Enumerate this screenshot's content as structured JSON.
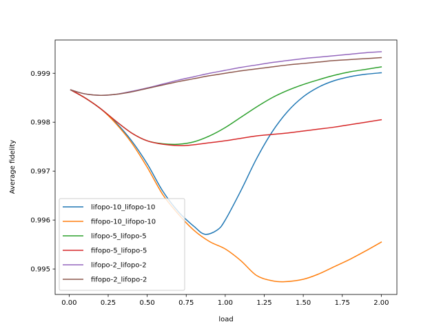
{
  "chart_data": {
    "type": "line",
    "title": "",
    "xlabel": "load",
    "ylabel": "Average fidelity",
    "xlim": [
      -0.09,
      2.1
    ],
    "ylim": [
      0.99448,
      0.99968
    ],
    "xticks": [
      0.0,
      0.25,
      0.5,
      0.75,
      1.0,
      1.25,
      1.5,
      1.75,
      2.0
    ],
    "xtick_labels": [
      "0.00",
      "0.25",
      "0.50",
      "0.75",
      "1.00",
      "1.25",
      "1.50",
      "1.75",
      "2.00"
    ],
    "yticks": [
      0.995,
      0.996,
      0.997,
      0.998,
      0.999
    ],
    "ytick_labels": [
      "0.995",
      "0.996",
      "0.997",
      "0.998",
      "0.999"
    ],
    "grid": false,
    "legend_position": "lower-left",
    "series": [
      {
        "name": "lifopo-10_lifopo-10",
        "color": "#1f77b4",
        "x": [
          0.01,
          0.1,
          0.2,
          0.3,
          0.4,
          0.5,
          0.6,
          0.7,
          0.8,
          0.87,
          0.95,
          1.0,
          1.1,
          1.2,
          1.3,
          1.4,
          1.5,
          1.6,
          1.7,
          1.8,
          1.9,
          2.0
        ],
        "y": [
          0.99866,
          0.9985,
          0.99828,
          0.99799,
          0.99762,
          0.99715,
          0.99659,
          0.99617,
          0.99587,
          0.99571,
          0.9958,
          0.996,
          0.9966,
          0.99725,
          0.9978,
          0.99822,
          0.99852,
          0.99872,
          0.99885,
          0.99893,
          0.99898,
          0.99901
        ]
      },
      {
        "name": "fifopo-10_lifopo-10",
        "color": "#ff7f0e",
        "x": [
          0.01,
          0.1,
          0.2,
          0.3,
          0.4,
          0.5,
          0.6,
          0.7,
          0.8,
          0.9,
          1.0,
          1.1,
          1.2,
          1.3,
          1.38,
          1.5,
          1.6,
          1.7,
          1.8,
          1.9,
          2.0
        ],
        "y": [
          0.99866,
          0.9985,
          0.99828,
          0.99797,
          0.99758,
          0.99708,
          0.99652,
          0.99612,
          0.99579,
          0.99556,
          0.99541,
          0.99517,
          0.99487,
          0.99476,
          0.99474,
          0.99479,
          0.9949,
          0.99505,
          0.9952,
          0.99537,
          0.99555
        ]
      },
      {
        "name": "lifopo-5_lifopo-5",
        "color": "#2ca02c",
        "x": [
          0.01,
          0.1,
          0.2,
          0.3,
          0.4,
          0.5,
          0.6,
          0.7,
          0.8,
          0.9,
          1.0,
          1.1,
          1.2,
          1.3,
          1.4,
          1.5,
          1.6,
          1.7,
          1.8,
          1.9,
          2.0
        ],
        "y": [
          0.99866,
          0.9985,
          0.99828,
          0.99802,
          0.99778,
          0.99762,
          0.99756,
          0.99755,
          0.9976,
          0.99772,
          0.99789,
          0.9981,
          0.99831,
          0.9985,
          0.99865,
          0.99877,
          0.99887,
          0.99896,
          0.99903,
          0.99908,
          0.99913
        ]
      },
      {
        "name": "fifopo-5_lifopo-5",
        "color": "#d62728",
        "x": [
          0.01,
          0.1,
          0.2,
          0.3,
          0.4,
          0.5,
          0.6,
          0.72,
          0.8,
          0.9,
          1.0,
          1.1,
          1.2,
          1.3,
          1.4,
          1.5,
          1.6,
          1.7,
          1.8,
          1.9,
          2.0
        ],
        "y": [
          0.99866,
          0.9985,
          0.99828,
          0.99802,
          0.99778,
          0.99762,
          0.99755,
          0.99752,
          0.99754,
          0.99758,
          0.99762,
          0.99767,
          0.99772,
          0.99775,
          0.99778,
          0.99782,
          0.99786,
          0.9979,
          0.99795,
          0.998,
          0.99805
        ]
      },
      {
        "name": "lifopo-2_lifopo-2",
        "color": "#9467bd",
        "x": [
          0.01,
          0.1,
          0.2,
          0.3,
          0.4,
          0.5,
          0.6,
          0.7,
          0.8,
          0.9,
          1.0,
          1.1,
          1.2,
          1.3,
          1.4,
          1.5,
          1.6,
          1.7,
          1.8,
          1.9,
          2.0
        ],
        "y": [
          0.99866,
          0.99858,
          0.99855,
          0.99857,
          0.99863,
          0.9987,
          0.99878,
          0.99886,
          0.99893,
          0.999,
          0.99906,
          0.99912,
          0.99917,
          0.99922,
          0.99926,
          0.9993,
          0.99933,
          0.99936,
          0.99939,
          0.99942,
          0.99944
        ]
      },
      {
        "name": "fifopo-2_lifopo-2",
        "color": "#8c564b",
        "x": [
          0.01,
          0.1,
          0.2,
          0.3,
          0.4,
          0.5,
          0.6,
          0.7,
          0.8,
          0.9,
          1.0,
          1.1,
          1.2,
          1.3,
          1.4,
          1.5,
          1.6,
          1.7,
          1.8,
          1.9,
          2.0
        ],
        "y": [
          0.99866,
          0.99858,
          0.99855,
          0.99857,
          0.99862,
          0.99869,
          0.99876,
          0.99883,
          0.99889,
          0.99895,
          0.999,
          0.99905,
          0.99909,
          0.99913,
          0.99917,
          0.9992,
          0.99923,
          0.99926,
          0.99928,
          0.9993,
          0.99932
        ]
      }
    ]
  }
}
